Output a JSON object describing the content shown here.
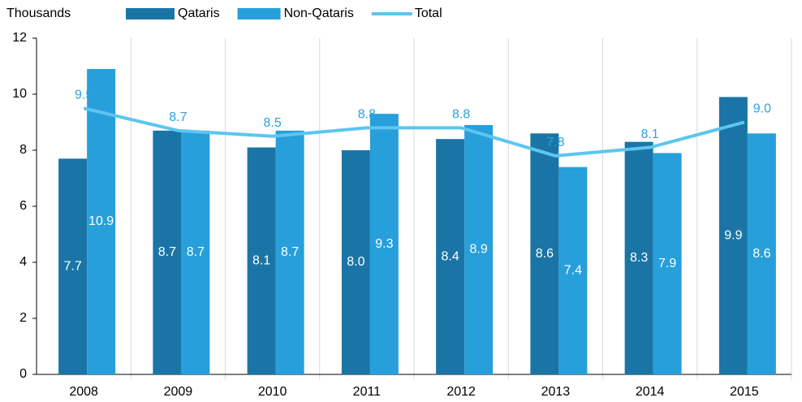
{
  "chart_data": {
    "type": "bar",
    "ylabel": "Thousands",
    "categories": [
      "2008",
      "2009",
      "2010",
      "2011",
      "2012",
      "2013",
      "2014",
      "2015"
    ],
    "series": [
      {
        "name": "Qataris",
        "type": "bar",
        "color": "#1a75a6",
        "values": [
          7.7,
          8.7,
          8.1,
          8.0,
          8.4,
          8.6,
          8.3,
          9.9
        ],
        "value_labels": [
          "7.7",
          "8.7",
          "8.1",
          "8.0",
          "8.4",
          "8.6",
          "8.3",
          "9.9"
        ]
      },
      {
        "name": "Non-Qataris",
        "type": "bar",
        "color": "#279fdb",
        "values": [
          10.9,
          8.7,
          8.7,
          9.3,
          8.9,
          7.4,
          7.9,
          8.6
        ],
        "value_labels": [
          "10.9",
          "8.7",
          "8.7",
          "9.3",
          "8.9",
          "7.4",
          "7.9",
          "8.6"
        ]
      },
      {
        "name": "Total",
        "type": "line",
        "color": "#5cc6ef",
        "values": [
          9.5,
          8.7,
          8.5,
          8.8,
          8.8,
          7.8,
          8.1,
          9.0
        ],
        "value_labels": [
          "9.5",
          "8.7",
          "8.5",
          "8.8",
          "8.8",
          "7.8",
          "8.1",
          "9.0"
        ]
      }
    ],
    "ylim": [
      0,
      12
    ],
    "yticks": [
      0,
      2,
      4,
      6,
      8,
      10,
      12
    ],
    "grid": "x"
  }
}
